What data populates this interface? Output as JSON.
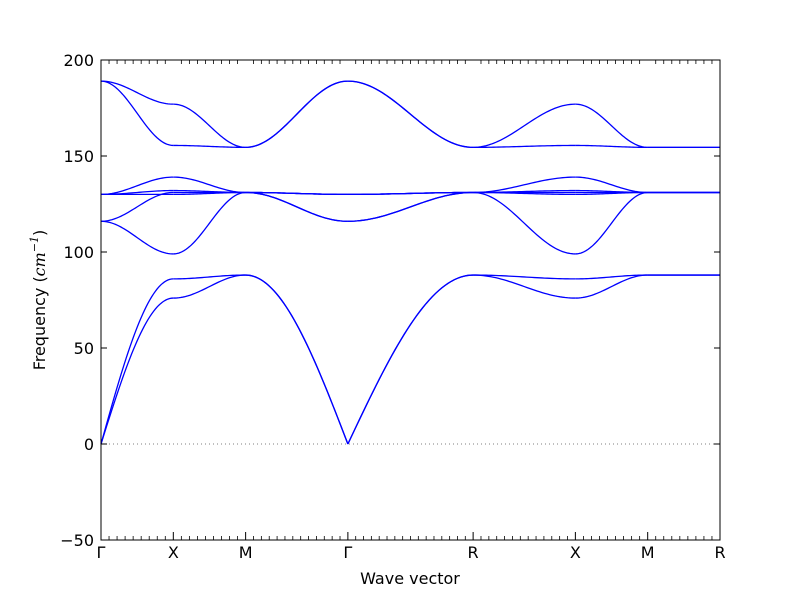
{
  "chart_data": {
    "type": "line",
    "title": "",
    "xlabel": "Wave vector",
    "ylabel": "Frequency",
    "ylabel_unit": "cm",
    "ylabel_unit_exp": "−1",
    "ylim": [
      -50,
      200
    ],
    "yticks": [
      -50,
      0,
      50,
      100,
      150,
      200
    ],
    "ytick_labels": [
      "−50",
      "0",
      "50",
      "100",
      "150",
      "200"
    ],
    "grid": false,
    "legend": "none",
    "zero_line": 0,
    "line_color": "#0000ff",
    "xticks": [
      {
        "label": "Γ",
        "pos": 0
      },
      {
        "label": "X",
        "pos": 1
      },
      {
        "label": "M",
        "pos": 2
      },
      {
        "label": "Γ",
        "pos": 3.414
      },
      {
        "label": "R",
        "pos": 5.146
      },
      {
        "label": "X",
        "pos": 6.56
      },
      {
        "label": "M",
        "pos": 7.56
      },
      {
        "label": "R",
        "pos": 8.56
      }
    ],
    "xlim": [
      0,
      8.56
    ],
    "segments": [
      {
        "path": "Γ-X",
        "start": 0,
        "end": 1,
        "bands": [
          [
            0,
            76
          ],
          [
            0,
            86
          ],
          [
            116,
            99
          ],
          [
            116,
            131
          ],
          [
            130,
            139
          ],
          [
            130,
            130
          ],
          [
            130,
            132
          ],
          [
            189,
            177
          ],
          [
            189,
            155.5
          ]
        ]
      },
      {
        "path": "X-M",
        "start": 1,
        "end": 2,
        "bands": [
          [
            76,
            88
          ],
          [
            86,
            88
          ],
          [
            99,
            131
          ],
          [
            131,
            131
          ],
          [
            139,
            131
          ],
          [
            130,
            131
          ],
          [
            132,
            131
          ],
          [
            177,
            154.5
          ],
          [
            155.5,
            154.5
          ]
        ]
      },
      {
        "path": "M-Γ",
        "start": 2,
        "end": 3.414,
        "bands": [
          [
            88,
            0
          ],
          [
            88,
            0
          ],
          [
            131,
            116
          ],
          [
            131,
            116
          ],
          [
            131,
            130
          ],
          [
            131,
            130
          ],
          [
            131,
            130
          ],
          [
            154.5,
            189
          ],
          [
            154.5,
            189
          ]
        ]
      },
      {
        "path": "Γ-R",
        "start": 3.414,
        "end": 5.146,
        "bands": [
          [
            0,
            88
          ],
          [
            0,
            88
          ],
          [
            116,
            131
          ],
          [
            116,
            131
          ],
          [
            130,
            131
          ],
          [
            130,
            131
          ],
          [
            130,
            131
          ],
          [
            189,
            154.5
          ],
          [
            189,
            154.5
          ]
        ]
      },
      {
        "path": "R-X",
        "start": 5.146,
        "end": 6.56,
        "bands": [
          [
            88,
            76
          ],
          [
            88,
            86
          ],
          [
            131,
            99
          ],
          [
            131,
            131
          ],
          [
            131,
            139
          ],
          [
            131,
            130
          ],
          [
            131,
            132
          ],
          [
            154.5,
            177
          ],
          [
            154.5,
            155.5
          ]
        ]
      },
      {
        "path": "X-M",
        "start": 6.56,
        "end": 7.56,
        "bands": [
          [
            76,
            88
          ],
          [
            86,
            88
          ],
          [
            99,
            131
          ],
          [
            131,
            131
          ],
          [
            139,
            131
          ],
          [
            130,
            131
          ],
          [
            132,
            131
          ],
          [
            177,
            154.5
          ],
          [
            155.5,
            154.5
          ]
        ]
      },
      {
        "path": "M-R",
        "start": 7.56,
        "end": 8.56,
        "bands": [
          [
            88,
            88
          ],
          [
            88,
            88
          ],
          [
            131,
            131
          ],
          [
            131,
            131
          ],
          [
            131,
            131
          ],
          [
            131,
            131
          ],
          [
            131,
            131
          ],
          [
            154.5,
            154.5
          ],
          [
            154.5,
            154.5
          ]
        ]
      }
    ]
  }
}
